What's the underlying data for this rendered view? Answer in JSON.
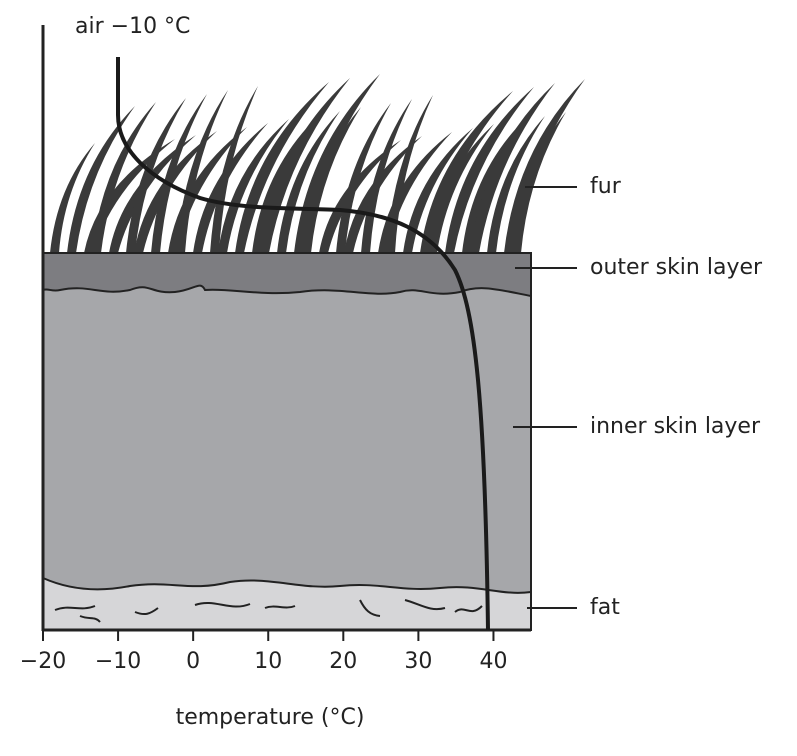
{
  "air_label": "air −10 °C",
  "labels": [
    "fur",
    "outer skin layer",
    "inner skin layer",
    "fat"
  ],
  "axis": {
    "label": "temperature (°C)",
    "xlim": [
      -20,
      45
    ],
    "ticks": [
      {
        "value": -20,
        "label": "−20"
      },
      {
        "value": -10,
        "label": "−10"
      },
      0,
      10,
      20,
      30,
      40
    ]
  }
}
